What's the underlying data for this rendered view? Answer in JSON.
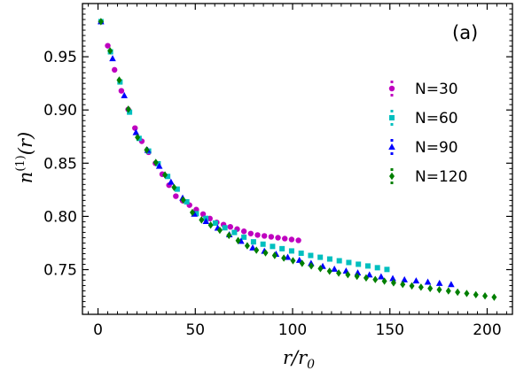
{
  "chart_data": {
    "type": "scatter",
    "panel_label": "(a)",
    "xlabel": "r/r0",
    "ylabel": "n(1)(r)",
    "xlim": [
      -8,
      213
    ],
    "ylim": [
      0.708,
      1.0
    ],
    "xticks": [
      0,
      50,
      100,
      150,
      200
    ],
    "xtick_labels": [
      "0",
      "50",
      "100",
      "150",
      "200"
    ],
    "yticks": [
      0.75,
      0.8,
      0.85,
      0.9,
      0.95
    ],
    "ytick_labels": [
      "0.75",
      "0.80",
      "0.85",
      "0.90",
      "0.95"
    ],
    "legend_placement": "right",
    "grid": false,
    "series": [
      {
        "name": "N=30",
        "color": "#bf00bf",
        "marker": "circle",
        "x_start": 1.5,
        "x_step": 3.5,
        "x_end": 105,
        "values_at_x": [
          [
            1.5,
            0.983
          ],
          [
            10,
            0.928
          ],
          [
            20,
            0.878
          ],
          [
            40,
            0.819
          ],
          [
            60,
            0.795
          ],
          [
            80,
            0.783
          ],
          [
            105,
            0.777
          ]
        ]
      },
      {
        "name": "N=60",
        "color": "#00bfbf",
        "marker": "square",
        "x_start": 1.5,
        "x_step": 4.9,
        "x_end": 149,
        "values_at_x": [
          [
            1.5,
            0.983
          ],
          [
            20,
            0.876
          ],
          [
            50,
            0.803
          ],
          [
            80,
            0.776
          ],
          [
            110,
            0.763
          ],
          [
            149,
            0.75
          ]
        ]
      },
      {
        "name": "N=90",
        "color": "#0000ff",
        "marker": "triangle",
        "x_start": 1.5,
        "x_step": 6.0,
        "x_end": 182,
        "values_at_x": [
          [
            1.5,
            0.983
          ],
          [
            20,
            0.876
          ],
          [
            50,
            0.801
          ],
          [
            80,
            0.77
          ],
          [
            120,
            0.751
          ],
          [
            150,
            0.742
          ],
          [
            182,
            0.736
          ]
        ]
      },
      {
        "name": "N=120",
        "color": "#007f00",
        "marker": "diamond",
        "x_start": 1.5,
        "x_step": 4.7,
        "x_end": 208,
        "values_at_x": [
          [
            1.5,
            0.983
          ],
          [
            20,
            0.875
          ],
          [
            50,
            0.8
          ],
          [
            80,
            0.769
          ],
          [
            120,
            0.748
          ],
          [
            160,
            0.735
          ],
          [
            208,
            0.723
          ]
        ]
      }
    ]
  }
}
